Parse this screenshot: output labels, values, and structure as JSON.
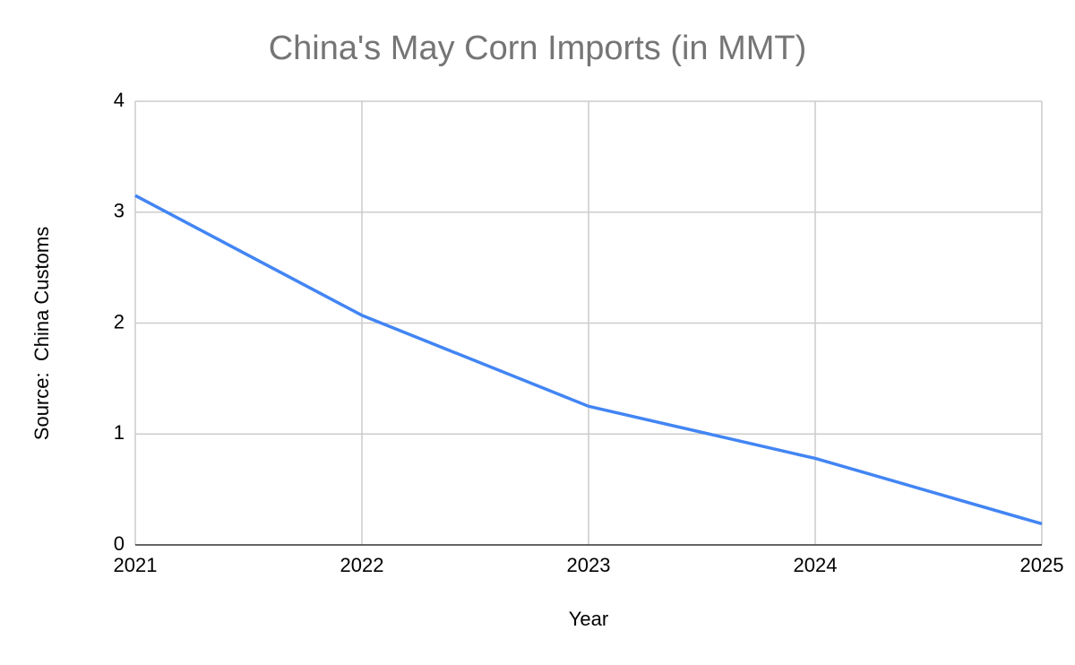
{
  "chart_data": {
    "type": "line",
    "title": "China's May Corn Imports (in MMT)",
    "x_label": "Year",
    "y_label": "Source:  China Customs",
    "x": [
      2021,
      2022,
      2023,
      2024,
      2025
    ],
    "series": [
      {
        "name": "China's May Corn Imports (in MMT)",
        "color": "#4285f4",
        "values": [
          3.15,
          2.07,
          1.25,
          0.78,
          0.19
        ]
      }
    ],
    "xlim": [
      2021,
      2025
    ],
    "xticks": [
      2021,
      2022,
      2023,
      2024,
      2025
    ],
    "ylim": [
      0,
      4
    ],
    "yticks": [
      0,
      1,
      2,
      3,
      4
    ],
    "grid": true
  }
}
